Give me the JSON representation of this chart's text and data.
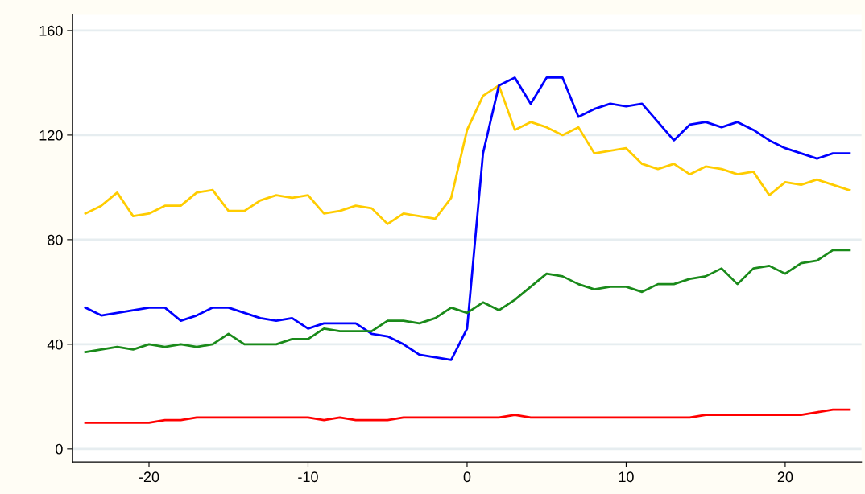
{
  "chart_data": {
    "type": "line",
    "x": [
      -24,
      -23,
      -22,
      -21,
      -20,
      -19,
      -18,
      -17,
      -16,
      -15,
      -14,
      -13,
      -12,
      -11,
      -10,
      -9,
      -8,
      -7,
      -6,
      -5,
      -4,
      -3,
      -2,
      -1,
      0,
      1,
      2,
      3,
      4,
      5,
      6,
      7,
      8,
      9,
      10,
      11,
      12,
      13,
      14,
      15,
      16,
      17,
      18,
      19,
      20,
      21,
      22,
      23,
      24
    ],
    "series": [
      {
        "color": "#ffcc00",
        "values": [
          90,
          93,
          98,
          89,
          90,
          93,
          93,
          98,
          99,
          91,
          91,
          95,
          97,
          96,
          97,
          90,
          91,
          93,
          92,
          86,
          90,
          89,
          88,
          96,
          122,
          135,
          139,
          122,
          125,
          123,
          120,
          123,
          113,
          114,
          115,
          109,
          107,
          109,
          105,
          108,
          107,
          105,
          106,
          97,
          102,
          101,
          103,
          101,
          99
        ]
      },
      {
        "color": "#0000ff",
        "values": [
          54,
          51,
          52,
          53,
          54,
          54,
          49,
          51,
          54,
          54,
          52,
          50,
          49,
          50,
          46,
          48,
          48,
          48,
          44,
          43,
          40,
          36,
          35,
          34,
          46,
          113,
          139,
          142,
          132,
          142,
          142,
          127,
          130,
          132,
          131,
          132,
          125,
          118,
          124,
          125,
          123,
          125,
          122,
          118,
          115,
          113,
          111,
          113,
          113
        ]
      },
      {
        "color": "#1a8a1a",
        "values": [
          37,
          38,
          39,
          38,
          40,
          39,
          40,
          39,
          40,
          44,
          40,
          40,
          40,
          42,
          42,
          46,
          45,
          45,
          45,
          49,
          49,
          48,
          50,
          54,
          52,
          56,
          53,
          57,
          62,
          67,
          66,
          63,
          61,
          62,
          62,
          60,
          63,
          63,
          65,
          66,
          69,
          63,
          69,
          70,
          67,
          71,
          72,
          76,
          76
        ]
      },
      {
        "color": "#ff0000",
        "values": [
          10,
          10,
          10,
          10,
          10,
          11,
          11,
          12,
          12,
          12,
          12,
          12,
          12,
          12,
          12,
          11,
          12,
          11,
          11,
          11,
          12,
          12,
          12,
          12,
          12,
          12,
          12,
          13,
          12,
          12,
          12,
          12,
          12,
          12,
          12,
          12,
          12,
          12,
          12,
          13,
          13,
          13,
          13,
          13,
          13,
          13,
          14,
          15,
          15
        ]
      }
    ],
    "xlim": [
      -24.8,
      24.8
    ],
    "ylim": [
      -5,
      166
    ],
    "xticks": [
      -20,
      -10,
      0,
      10,
      20
    ],
    "yticks": [
      0,
      40,
      80,
      120,
      160
    ],
    "grid": "y",
    "legend": false
  }
}
